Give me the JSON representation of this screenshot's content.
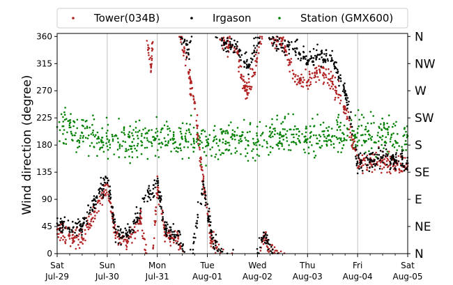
{
  "chart_data": {
    "type": "scatter",
    "title": "",
    "xlabel": "",
    "ylabel": "Wind direction (degree)",
    "xlim": [
      "2017-07-29T00:00",
      "2017-08-05T00:00"
    ],
    "ylim": [
      0,
      365
    ],
    "y_ticks": [
      0,
      45,
      90,
      135,
      180,
      225,
      270,
      315,
      360
    ],
    "x_ticks": [
      {
        "day": "Sat",
        "date": "Jul-29"
      },
      {
        "day": "Sun",
        "date": "Jul-30"
      },
      {
        "day": "Mon",
        "date": "Jul-31"
      },
      {
        "day": "Tue",
        "date": "Aug-01"
      },
      {
        "day": "Wed",
        "date": "Aug-02"
      },
      {
        "day": "Thu",
        "date": "Aug-03"
      },
      {
        "day": "Fri",
        "date": "Aug-04"
      },
      {
        "day": "Sat",
        "date": "Aug-05"
      }
    ],
    "compass_labels": [
      "N",
      "NE",
      "E",
      "SE",
      "S",
      "SW",
      "W",
      "NW",
      "N"
    ],
    "grid": "vertical lines at day boundaries",
    "legend_position": "top (outside plot)",
    "series": [
      {
        "name": "Tower(034B)",
        "color": "#b22222",
        "description_points": [
          [
            "2017-07-29T00:00",
            40
          ],
          [
            "2017-07-29T06:00",
            30
          ],
          [
            "2017-07-29T12:00",
            25
          ],
          [
            "2017-07-29T18:00",
            70
          ],
          [
            "2017-07-30T00:00",
            115
          ],
          [
            "2017-07-30T04:00",
            30
          ],
          [
            "2017-07-30T10:00",
            20
          ],
          [
            "2017-07-30T16:00",
            60
          ],
          [
            "2017-07-30T21:00",
            310
          ],
          [
            "2017-07-31T00:00",
            110
          ],
          [
            "2017-07-31T04:00",
            30
          ],
          [
            "2017-07-31T10:00",
            25
          ],
          [
            "2017-07-31T15:00",
            300
          ],
          [
            "2017-07-31T18:00",
            240
          ],
          [
            "2017-07-31T22:00",
            120
          ],
          [
            "2017-08-01T02:00",
            20
          ],
          [
            "2017-08-01T08:00",
            350
          ],
          [
            "2017-08-01T14:00",
            340
          ],
          [
            "2017-08-01T18:00",
            270
          ],
          [
            "2017-08-01T22:00",
            295
          ],
          [
            "2017-08-02T03:00",
            30
          ],
          [
            "2017-08-02T08:00",
            355
          ],
          [
            "2017-08-02T12:00",
            355
          ],
          [
            "2017-08-02T18:00",
            285
          ],
          [
            "2017-08-03T00:00",
            285
          ],
          [
            "2017-08-03T06:00",
            300
          ],
          [
            "2017-08-03T12:00",
            285
          ],
          [
            "2017-08-03T18:00",
            240
          ],
          [
            "2017-08-04T00:00",
            150
          ],
          [
            "2017-08-04T06:00",
            150
          ],
          [
            "2017-08-04T12:00",
            155
          ],
          [
            "2017-08-04T18:00",
            150
          ],
          [
            "2017-08-05T00:00",
            145
          ]
        ]
      },
      {
        "name": "Irgason",
        "color": "#000000",
        "description_points": [
          [
            "2017-07-29T00:00",
            50
          ],
          [
            "2017-07-29T06:00",
            40
          ],
          [
            "2017-07-29T12:00",
            45
          ],
          [
            "2017-07-29T18:00",
            90
          ],
          [
            "2017-07-30T00:00",
            125
          ],
          [
            "2017-07-30T04:00",
            35
          ],
          [
            "2017-07-30T10:00",
            30
          ],
          [
            "2017-07-30T16:00",
            75
          ],
          [
            "2017-07-31T00:00",
            120
          ],
          [
            "2017-07-31T04:00",
            40
          ],
          [
            "2017-07-31T10:00",
            30
          ],
          [
            "2017-07-31T15:00",
            330
          ],
          [
            "2017-07-31T22:00",
            115
          ],
          [
            "2017-08-01T02:00",
            30
          ],
          [
            "2017-08-01T08:00",
            350
          ],
          [
            "2017-08-01T14:00",
            340
          ],
          [
            "2017-08-01T20:00",
            310
          ],
          [
            "2017-08-02T03:00",
            35
          ],
          [
            "2017-08-02T08:00",
            350
          ],
          [
            "2017-08-02T18:00",
            340
          ],
          [
            "2017-08-03T00:00",
            320
          ],
          [
            "2017-08-03T06:00",
            330
          ],
          [
            "2017-08-03T12:00",
            320
          ],
          [
            "2017-08-03T18:00",
            270
          ],
          [
            "2017-08-04T00:00",
            150
          ],
          [
            "2017-08-04T06:00",
            155
          ],
          [
            "2017-08-04T12:00",
            160
          ],
          [
            "2017-08-04T18:00",
            155
          ],
          [
            "2017-08-05T00:00",
            150
          ]
        ]
      },
      {
        "name": "Station (GMX600)",
        "color": "#008000",
        "description_points": [
          [
            "2017-07-29T00:00",
            210
          ],
          [
            "2017-07-29T12:00",
            200
          ],
          [
            "2017-07-30T00:00",
            190
          ],
          [
            "2017-07-30T12:00",
            185
          ],
          [
            "2017-07-31T00:00",
            195
          ],
          [
            "2017-07-31T12:00",
            190
          ],
          [
            "2017-08-01T00:00",
            185
          ],
          [
            "2017-08-01T12:00",
            190
          ],
          [
            "2017-08-02T00:00",
            185
          ],
          [
            "2017-08-02T12:00",
            195
          ],
          [
            "2017-08-03T00:00",
            190
          ],
          [
            "2017-08-03T12:00",
            195
          ],
          [
            "2017-08-04T00:00",
            200
          ],
          [
            "2017-08-04T12:00",
            195
          ],
          [
            "2017-08-05T00:00",
            195
          ]
        ]
      }
    ]
  }
}
